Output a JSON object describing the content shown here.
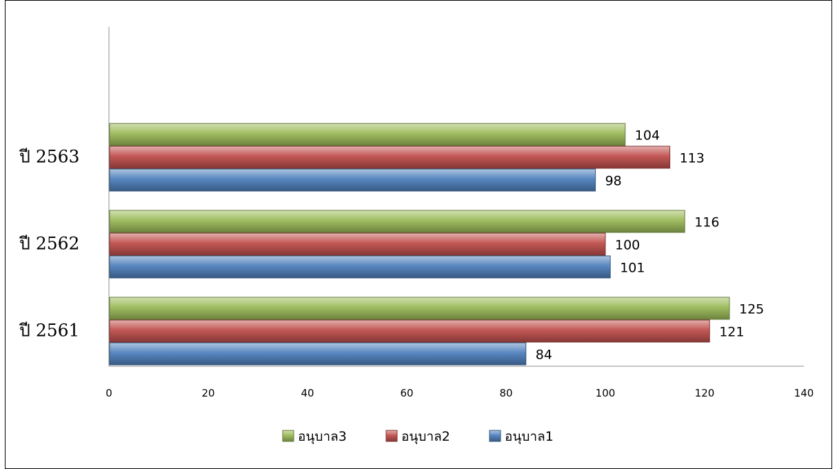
{
  "chart_data": {
    "type": "bar",
    "orientation": "horizontal",
    "categories": [
      "ปี  2561",
      "ปี  2562",
      "ปี  2563"
    ],
    "series": [
      {
        "name": "อนุบาล1",
        "values": [
          84,
          101,
          98
        ],
        "color": "#4f81bd"
      },
      {
        "name": "อนุบาล2",
        "values": [
          121,
          100,
          113
        ],
        "color": "#c0504d"
      },
      {
        "name": "อนุบาล3",
        "values": [
          125,
          116,
          104
        ],
        "color": "#9bbb59"
      }
    ],
    "xlim": [
      0,
      140
    ],
    "xticks": [
      0,
      20,
      40,
      60,
      80,
      100,
      120,
      140
    ],
    "legend_order": [
      "อนุบาล3",
      "อนุบาล2",
      "อนุบาล1"
    ],
    "legend_position": "bottom",
    "grid": false
  }
}
